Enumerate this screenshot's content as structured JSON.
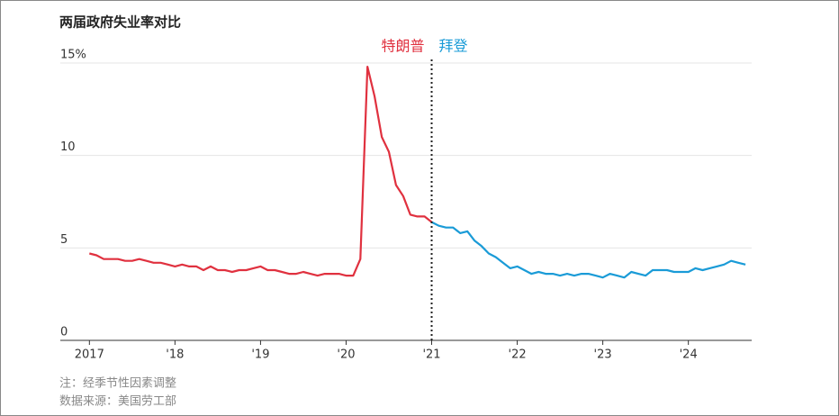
{
  "chart_data": {
    "type": "line",
    "title": "两届政府失业率对比",
    "notes": [
      "注：经季节性因素调整",
      "数据来源：美国劳工部"
    ],
    "divider_x": 2021,
    "series": [
      {
        "name": "特朗普",
        "color": "#e0313f",
        "x": [
          2017,
          2017.083,
          2017.167,
          2017.25,
          2017.333,
          2017.417,
          2017.5,
          2017.583,
          2017.667,
          2017.75,
          2017.833,
          2017.917,
          2018,
          2018.083,
          2018.167,
          2018.25,
          2018.333,
          2018.417,
          2018.5,
          2018.583,
          2018.667,
          2018.75,
          2018.833,
          2018.917,
          2019,
          2019.083,
          2019.167,
          2019.25,
          2019.333,
          2019.417,
          2019.5,
          2019.583,
          2019.667,
          2019.75,
          2019.833,
          2019.917,
          2020,
          2020.083,
          2020.167,
          2020.25,
          2020.333,
          2020.417,
          2020.5,
          2020.583,
          2020.667,
          2020.75,
          2020.833,
          2020.917,
          2021
        ],
        "values": [
          4.7,
          4.6,
          4.4,
          4.4,
          4.4,
          4.3,
          4.3,
          4.4,
          4.3,
          4.2,
          4.2,
          4.1,
          4.0,
          4.1,
          4.0,
          4.0,
          3.8,
          4.0,
          3.8,
          3.8,
          3.7,
          3.8,
          3.8,
          3.9,
          4.0,
          3.8,
          3.8,
          3.7,
          3.6,
          3.6,
          3.7,
          3.6,
          3.5,
          3.6,
          3.6,
          3.6,
          3.5,
          3.5,
          4.4,
          14.8,
          13.2,
          11.0,
          10.2,
          8.4,
          7.8,
          6.8,
          6.7,
          6.7,
          6.4
        ]
      },
      {
        "name": "拜登",
        "color": "#1a9bd7",
        "x": [
          2021,
          2021.083,
          2021.167,
          2021.25,
          2021.333,
          2021.417,
          2021.5,
          2021.583,
          2021.667,
          2021.75,
          2021.833,
          2021.917,
          2022,
          2022.083,
          2022.167,
          2022.25,
          2022.333,
          2022.417,
          2022.5,
          2022.583,
          2022.667,
          2022.75,
          2022.833,
          2022.917,
          2023,
          2023.083,
          2023.167,
          2023.25,
          2023.333,
          2023.417,
          2023.5,
          2023.583,
          2023.667,
          2023.75,
          2023.833,
          2023.917,
          2024,
          2024.083,
          2024.167,
          2024.25,
          2024.333,
          2024.417,
          2024.5,
          2024.583,
          2024.667
        ],
        "values": [
          6.4,
          6.2,
          6.1,
          6.1,
          5.8,
          5.9,
          5.4,
          5.1,
          4.7,
          4.5,
          4.2,
          3.9,
          4.0,
          3.8,
          3.6,
          3.7,
          3.6,
          3.6,
          3.5,
          3.6,
          3.5,
          3.6,
          3.6,
          3.5,
          3.4,
          3.6,
          3.5,
          3.4,
          3.7,
          3.6,
          3.5,
          3.8,
          3.8,
          3.8,
          3.7,
          3.7,
          3.7,
          3.9,
          3.8,
          3.9,
          4.0,
          4.1,
          4.3,
          4.2,
          4.1
        ]
      }
    ],
    "xlim": [
      2016.66,
      2024.74
    ],
    "xticks": [
      2017,
      {
        "value": 2018,
        "label": "'18"
      },
      {
        "value": 2019,
        "label": "'19"
      },
      {
        "value": 2020,
        "label": "'20"
      },
      {
        "value": 2021,
        "label": "'21"
      },
      {
        "value": 2022,
        "label": "'22"
      },
      {
        "value": 2023,
        "label": "'23"
      },
      {
        "value": 2024,
        "label": "'24"
      }
    ],
    "ylim": [
      0,
      15
    ],
    "yticks": [
      0,
      5,
      10,
      {
        "value": 15,
        "label": "15%"
      }
    ],
    "grid": true
  }
}
